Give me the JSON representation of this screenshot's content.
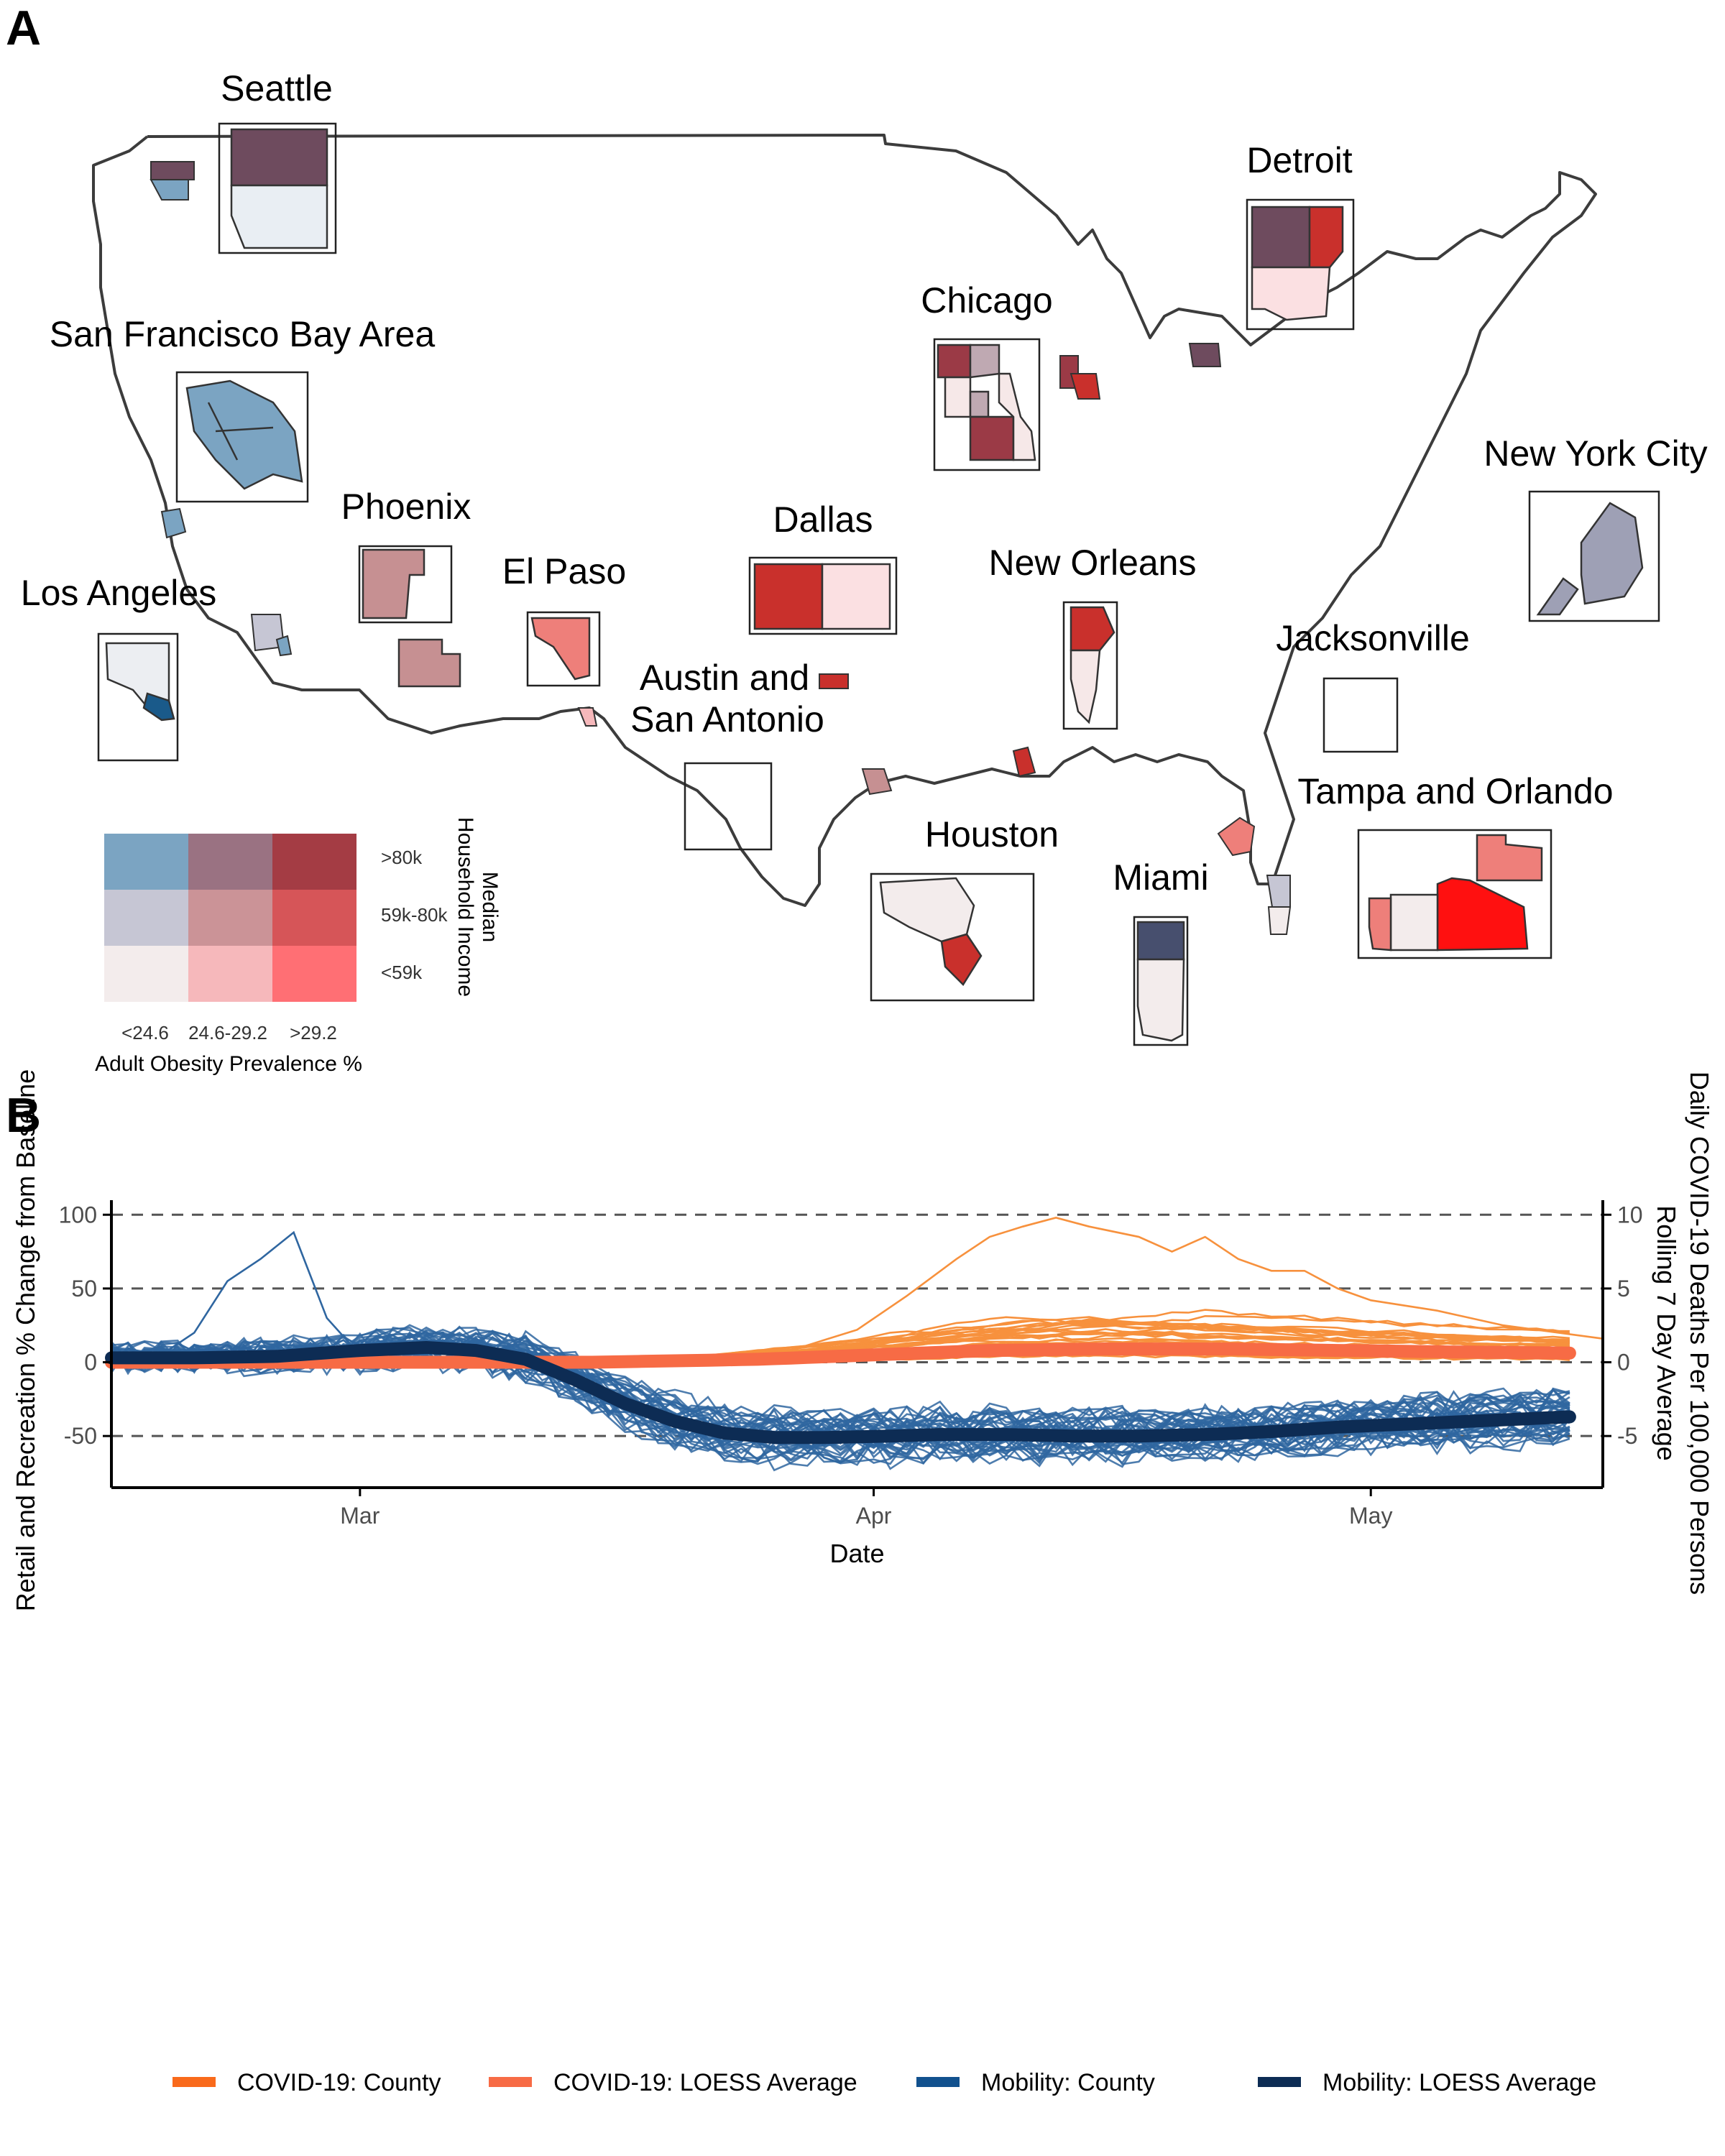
{
  "panels": {
    "a": "A",
    "b": "B"
  },
  "map": {
    "cities": [
      {
        "key": "seattle",
        "label": "Seattle",
        "fills": [
          "#6e4b5e",
          "#e9eef3"
        ]
      },
      {
        "key": "sf",
        "label": "San Francisco Bay Area",
        "fills": [
          "#7ba4c2"
        ]
      },
      {
        "key": "la",
        "label": "Los Angeles",
        "fills": [
          "#eceef2",
          "#1a5a8a"
        ]
      },
      {
        "key": "phoenix",
        "label": "Phoenix",
        "fills": [
          "#c69092"
        ]
      },
      {
        "key": "elpaso",
        "label": "El Paso",
        "fills": [
          "#ee7f7a"
        ]
      },
      {
        "key": "dallas",
        "label": "Dallas",
        "fills": [
          "#c9302c",
          "#fbe0e2"
        ]
      },
      {
        "key": "austin",
        "label_lines": [
          "Austin and",
          "San Antonio"
        ],
        "fills": []
      },
      {
        "key": "chicago",
        "label": "Chicago",
        "fills": [
          "#9b3a46",
          "#bfa9b2",
          "#f6e8e8"
        ]
      },
      {
        "key": "detroit",
        "label": "Detroit",
        "fills": [
          "#6e4b5e",
          "#c9302c",
          "#fbe0e2"
        ]
      },
      {
        "key": "neworleans",
        "label": "New Orleans",
        "fills": [
          "#c9302c",
          "#f6e8e8"
        ]
      },
      {
        "key": "houston",
        "label": "Houston",
        "fills": [
          "#f3ecec",
          "#c9302c"
        ]
      },
      {
        "key": "nyc",
        "label": "New York City",
        "fills": [
          "#9ea0b5"
        ]
      },
      {
        "key": "jacksonville",
        "label": "Jacksonville",
        "fills": []
      },
      {
        "key": "miami",
        "label": "Miami",
        "fills": [
          "#474f6e",
          "#f3ecec"
        ]
      },
      {
        "key": "tampa",
        "label": "Tampa and Orlando",
        "fills": [
          "#ff1010",
          "#ee7f7a",
          "#f3ecec"
        ]
      }
    ],
    "bivariate_legend": {
      "colors": [
        [
          "#7ba4c2",
          "#9a7282",
          "#a43c44"
        ],
        [
          "#c6c6d4",
          "#cb9397",
          "#d65558"
        ],
        [
          "#f3ecec",
          "#f6b8bb",
          "#ff6f74"
        ]
      ],
      "income_labels": [
        ">80k",
        "59k-80k",
        "<59k"
      ],
      "income_title_lines": [
        "Median",
        "Household Income"
      ],
      "obesity_labels": [
        "<24.6",
        "24.6-29.2",
        ">29.2"
      ],
      "obesity_title": "Adult Obesity Prevalence %"
    }
  },
  "chart_data": {
    "type": "line",
    "xlabel": "Date",
    "ylabel": "Retail and Recreation % Change from Baseline",
    "ylabel2_lines": [
      "Daily COVID-19 Deaths Per 100,000 Persons",
      "Rolling 7 Day Average"
    ],
    "xlim": [
      "2020-02-15",
      "2020-05-15"
    ],
    "ylim": [
      -85,
      105
    ],
    "y2lim": [
      -8.5,
      10.5
    ],
    "xticks": [
      {
        "date": "2020-03-01",
        "label": "Mar"
      },
      {
        "date": "2020-04-01",
        "label": "Apr"
      },
      {
        "date": "2020-05-01",
        "label": "May"
      }
    ],
    "yticks": [
      -50,
      0,
      50,
      100
    ],
    "yticklabels": [
      "-50",
      "0",
      "50",
      "100"
    ],
    "y2ticks": [
      -5,
      0,
      5,
      10
    ],
    "y2ticklabels": [
      "-5",
      "0",
      "5",
      "10"
    ],
    "gridlines_dashed_at": [
      -50,
      0,
      50,
      100
    ],
    "legend": [
      {
        "label": "COVID-19: County",
        "color": "#f96a1b"
      },
      {
        "label": "COVID-19: LOESS Average",
        "color": "#f76b45"
      },
      {
        "label": "Mobility: County",
        "color": "#12518e"
      },
      {
        "label": "Mobility: LOESS Average",
        "color": "#0d2c54"
      }
    ],
    "legend_position": "bottom",
    "mobility_loess": {
      "x": [
        "2020-02-15",
        "2020-02-20",
        "2020-02-25",
        "2020-03-01",
        "2020-03-05",
        "2020-03-08",
        "2020-03-11",
        "2020-03-14",
        "2020-03-17",
        "2020-03-20",
        "2020-03-23",
        "2020-03-26",
        "2020-03-29",
        "2020-04-02",
        "2020-04-05",
        "2020-04-09",
        "2020-04-13",
        "2020-04-17",
        "2020-04-21",
        "2020-04-25",
        "2020-04-29",
        "2020-05-03",
        "2020-05-07",
        "2020-05-11",
        "2020-05-15"
      ],
      "y": [
        3,
        3,
        4,
        8,
        10,
        8,
        2,
        -12,
        -28,
        -40,
        -48,
        -51,
        -51,
        -50,
        -49,
        -49,
        -50,
        -50,
        -49,
        -47,
        -44,
        -42,
        -40,
        -38,
        -36
      ]
    },
    "mobility_spike_county": {
      "x": [
        "2020-02-18",
        "2020-02-20",
        "2020-02-22",
        "2020-02-24",
        "2020-02-26",
        "2020-02-28",
        "2020-03-01"
      ],
      "y": [
        5,
        20,
        55,
        70,
        88,
        30,
        5
      ]
    },
    "covid_peak_county": {
      "x": [
        "2020-03-22",
        "2020-03-27",
        "2020-03-31",
        "2020-04-03",
        "2020-04-06",
        "2020-04-08",
        "2020-04-10",
        "2020-04-12",
        "2020-04-14",
        "2020-04-17",
        "2020-04-19",
        "2020-04-21",
        "2020-04-23",
        "2020-04-25",
        "2020-04-27",
        "2020-04-29",
        "2020-05-01",
        "2020-05-05",
        "2020-05-09",
        "2020-05-15"
      ],
      "y": [
        0,
        0.8,
        2.2,
        4.5,
        7,
        8.5,
        9.2,
        9.8,
        9.2,
        8.5,
        7.5,
        8.5,
        7,
        6.2,
        6.2,
        5,
        4.2,
        3.5,
        2.5,
        1.6
      ]
    },
    "covid_loess": {
      "x": [
        "2020-02-15",
        "2020-03-15",
        "2020-03-25",
        "2020-04-01",
        "2020-04-08",
        "2020-04-15",
        "2020-04-22",
        "2020-04-29",
        "2020-05-06",
        "2020-05-15"
      ],
      "y": [
        0,
        0,
        0.2,
        0.5,
        0.8,
        0.9,
        0.9,
        0.8,
        0.7,
        0.6
      ]
    },
    "mobility_county_count": 40,
    "covid_county_count": 26
  }
}
